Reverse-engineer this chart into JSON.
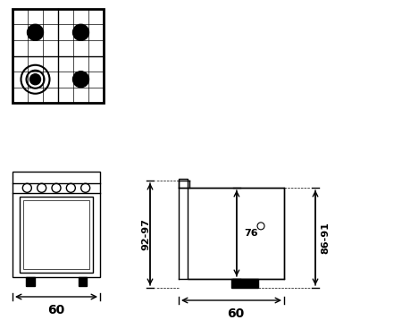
{
  "bg_color": "#ffffff",
  "line_color": "#000000",
  "text_color": "#000000",
  "dim_60_front": "60",
  "dim_60_side": "60",
  "dim_9297": "92-97",
  "dim_76": "76",
  "dim_8691": "86-91",
  "font_size_dim": 8,
  "font_size_large": 10
}
